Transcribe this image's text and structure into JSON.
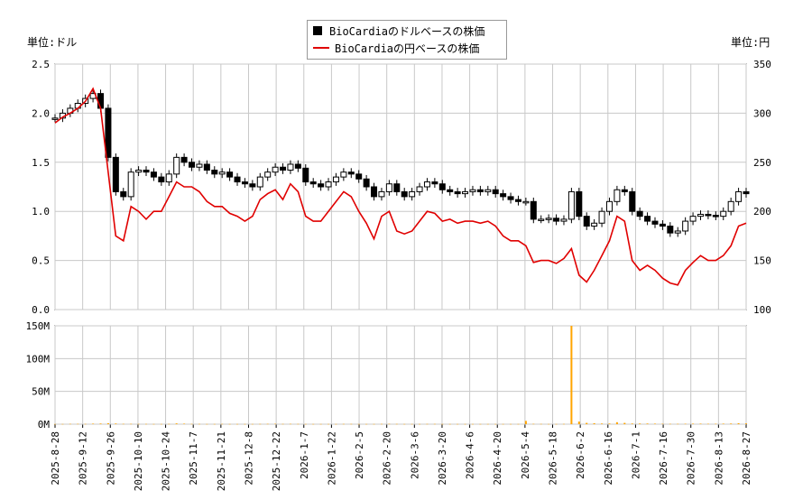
{
  "legend": {
    "usd_label": "BioCardiaのドルベースの株価",
    "jpy_label": "BioCardiaの円ベースの株価"
  },
  "units": {
    "left": "単位:ドル",
    "right": "単位:円"
  },
  "colors": {
    "usd": "#000000",
    "jpy": "#e00000",
    "volume": "#ffa500",
    "grid": "#c8c8c8"
  },
  "chart_data": [
    {
      "type": "line",
      "y_left_ticks": [
        "0.0",
        "0.5",
        "1.0",
        "1.5",
        "2.0",
        "2.5"
      ],
      "y_right_ticks": [
        "100",
        "150",
        "200",
        "250",
        "300",
        "350"
      ],
      "ylim_left": [
        0,
        2.5
      ],
      "ylim_right": [
        100,
        350
      ],
      "x_tick_labels": [
        "2025-8-28",
        "2025-9-12",
        "2025-9-26",
        "2025-10-10",
        "2025-10-24",
        "2025-11-7",
        "2025-11-21",
        "2025-12-8",
        "2025-12-22",
        "2026-1-7",
        "2026-1-22",
        "2026-2-5",
        "2026-2-20",
        "2026-3-6",
        "2026-3-20",
        "2026-4-6",
        "2026-4-20",
        "2026-5-4",
        "2026-5-18",
        "2026-6-2",
        "2026-6-16",
        "2026-7-1",
        "2026-7-16",
        "2026-7-30",
        "2026-8-13",
        "2026-8-27"
      ],
      "grid": true,
      "series": [
        {
          "name": "BioCardiaのドルベースの株価",
          "kind": "candlestick",
          "values": [
            1.95,
            2.0,
            2.05,
            2.1,
            2.15,
            2.2,
            2.05,
            1.55,
            1.2,
            1.15,
            1.4,
            1.42,
            1.4,
            1.35,
            1.3,
            1.38,
            1.55,
            1.5,
            1.45,
            1.48,
            1.42,
            1.38,
            1.4,
            1.35,
            1.3,
            1.28,
            1.25,
            1.35,
            1.4,
            1.45,
            1.42,
            1.48,
            1.44,
            1.3,
            1.28,
            1.25,
            1.3,
            1.35,
            1.4,
            1.38,
            1.33,
            1.25,
            1.15,
            1.2,
            1.28,
            1.2,
            1.15,
            1.2,
            1.25,
            1.3,
            1.28,
            1.22,
            1.2,
            1.18,
            1.2,
            1.22,
            1.2,
            1.22,
            1.18,
            1.15,
            1.12,
            1.1,
            1.1,
            0.92,
            0.92,
            0.93,
            0.9,
            0.92,
            1.2,
            0.95,
            0.85,
            0.88,
            1.0,
            1.1,
            1.22,
            1.2,
            1.0,
            0.95,
            0.9,
            0.87,
            0.85,
            0.78,
            0.8,
            0.9,
            0.95,
            0.97,
            0.96,
            0.95,
            1.0,
            1.1,
            1.2,
            1.18
          ]
        },
        {
          "name": "BioCardiaの円ベースの株価",
          "kind": "line",
          "values": [
            290,
            296,
            300,
            305,
            312,
            325,
            305,
            240,
            175,
            170,
            205,
            200,
            192,
            200,
            200,
            215,
            230,
            225,
            225,
            220,
            210,
            205,
            205,
            198,
            195,
            190,
            195,
            212,
            218,
            222,
            212,
            228,
            220,
            195,
            190,
            190,
            200,
            210,
            220,
            215,
            200,
            188,
            172,
            195,
            200,
            180,
            177,
            180,
            190,
            200,
            198,
            190,
            192,
            188,
            190,
            190,
            188,
            190,
            185,
            175,
            170,
            170,
            165,
            148,
            150,
            150,
            147,
            152,
            162,
            135,
            128,
            140,
            155,
            170,
            195,
            190,
            150,
            140,
            145,
            140,
            132,
            127,
            125,
            140,
            148,
            155,
            150,
            150,
            155,
            165,
            185,
            188
          ]
        }
      ]
    },
    {
      "type": "bar",
      "y_ticks": [
        "0M",
        "50M",
        "100M",
        "150M"
      ],
      "ylim": [
        0,
        150
      ],
      "series": [
        {
          "kind": "volume",
          "values": [
            0.3,
            0.3,
            0.5,
            0.5,
            0.4,
            0.8,
            1.0,
            1.5,
            1.0,
            0.5,
            0.5,
            0.4,
            0.4,
            0.3,
            0.3,
            0.4,
            1.2,
            0.8,
            0.4,
            0.4,
            0.3,
            0.3,
            0.4,
            0.3,
            0.3,
            0.3,
            0.3,
            0.4,
            0.5,
            0.6,
            0.4,
            0.5,
            0.4,
            0.3,
            0.3,
            0.3,
            0.3,
            0.3,
            0.4,
            0.4,
            0.3,
            0.3,
            0.3,
            0.4,
            0.5,
            0.4,
            0.3,
            0.3,
            0.3,
            0.4,
            0.4,
            0.3,
            0.3,
            0.3,
            0.3,
            0.3,
            0.3,
            0.3,
            0.3,
            0.3,
            0.3,
            0.3,
            5,
            0.5,
            0.4,
            0.3,
            0.3,
            0.4,
            150,
            4,
            2,
            1.5,
            1,
            1,
            3,
            2,
            1,
            1,
            1,
            0.8,
            0.6,
            0.5,
            0.5,
            0.6,
            0.8,
            0.8,
            0.6,
            0.6,
            0.8,
            1.0,
            1.5,
            1.2
          ]
        }
      ]
    }
  ]
}
